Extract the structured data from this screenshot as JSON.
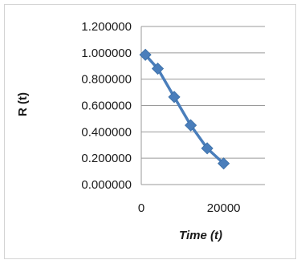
{
  "chart_data": {
    "type": "line",
    "title": "",
    "xlabel": "Time (t)",
    "ylabel": "R (t)",
    "x": [
      1000,
      4000,
      8000,
      12000,
      16000,
      20000
    ],
    "series": [
      {
        "values": [
          0.985,
          0.88,
          0.665,
          0.45,
          0.275,
          0.16
        ],
        "color": "#4a7ebb",
        "marker": "diamond"
      }
    ],
    "xlim": [
      0,
      30000
    ],
    "ylim": [
      0,
      1.2
    ],
    "x_ticks": [
      0,
      20000
    ],
    "x_tick_labels": [
      "0",
      "20000"
    ],
    "y_ticks": [
      0,
      0.2,
      0.4,
      0.6,
      0.8,
      1.0,
      1.2
    ],
    "y_tick_labels": [
      "0.000000",
      "0.200000",
      "0.400000",
      "0.600000",
      "0.800000",
      "1.000000",
      "1.200000"
    ],
    "grid": "horizontal",
    "legend": "none"
  }
}
